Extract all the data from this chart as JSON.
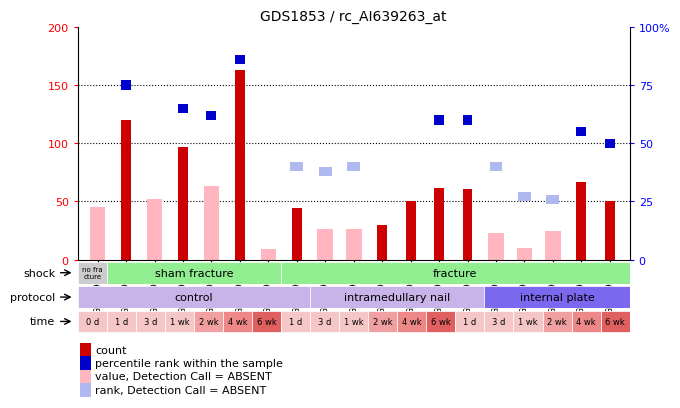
{
  "title": "GDS1853 / rc_AI639263_at",
  "samples": [
    "GSM29016",
    "GSM29029",
    "GSM29030",
    "GSM29031",
    "GSM29032",
    "GSM29033",
    "GSM29034",
    "GSM29017",
    "GSM29018",
    "GSM29019",
    "GSM29020",
    "GSM29021",
    "GSM29022",
    "GSM29023",
    "GSM29024",
    "GSM29025",
    "GSM29026",
    "GSM29027",
    "GSM29028"
  ],
  "count_present": [
    null,
    120,
    null,
    97,
    null,
    163,
    null,
    44,
    null,
    null,
    30,
    50,
    62,
    61,
    null,
    null,
    null,
    67,
    50
  ],
  "rank_present": [
    null,
    75,
    null,
    65,
    62,
    86,
    null,
    null,
    null,
    null,
    null,
    null,
    60,
    60,
    null,
    null,
    null,
    55,
    50
  ],
  "count_absent": [
    45,
    null,
    52,
    null,
    63,
    null,
    9,
    null,
    26,
    26,
    null,
    null,
    null,
    null,
    23,
    10,
    25,
    null,
    null
  ],
  "rank_absent": [
    null,
    null,
    null,
    null,
    null,
    null,
    null,
    40,
    38,
    40,
    null,
    null,
    null,
    null,
    40,
    27,
    26,
    null,
    null
  ],
  "count_color": "#cc0000",
  "rank_color": "#0000cc",
  "count_absent_color": "#ffb6c1",
  "rank_absent_color": "#b0b8f0",
  "left_ylim": [
    0,
    200
  ],
  "right_ylim": [
    0,
    100
  ],
  "left_yticks": [
    0,
    50,
    100,
    150,
    200
  ],
  "right_yticks": [
    0,
    25,
    50,
    75,
    100
  ],
  "right_yticklabels": [
    "0",
    "25",
    "50",
    "75",
    "100%"
  ],
  "time_labels": [
    "0 d",
    "1 d",
    "3 d",
    "1 wk",
    "2 wk",
    "4 wk",
    "6 wk",
    "1 d",
    "3 d",
    "1 wk",
    "2 wk",
    "4 wk",
    "6 wk",
    "1 d",
    "3 d",
    "1 wk",
    "2 wk",
    "4 wk",
    "6 wk"
  ],
  "time_colors": [
    "#f5c6c6",
    "#f5c6c6",
    "#f5c6c6",
    "#f5c6c6",
    "#f0a0a0",
    "#ee8888",
    "#e06060",
    "#f5c6c6",
    "#f5c6c6",
    "#f5c6c6",
    "#f0a0a0",
    "#ee8888",
    "#e06060",
    "#f5c6c6",
    "#f5c6c6",
    "#f5c6c6",
    "#f0a0a0",
    "#ee8888",
    "#e06060"
  ]
}
